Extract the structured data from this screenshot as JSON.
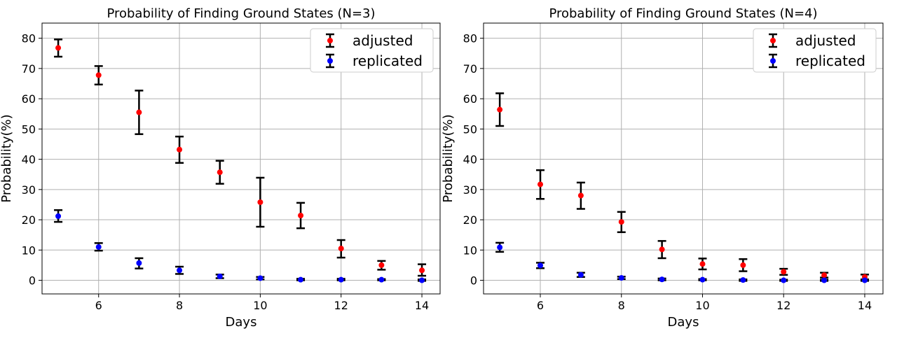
{
  "chart_data": [
    {
      "type": "scatter",
      "title": "Probability of Finding Ground States (N=3)",
      "xlabel": "Days",
      "ylabel": "Probability(%)",
      "xlim": [
        4.6,
        14.45
      ],
      "ylim": [
        -4.5,
        85
      ],
      "xticks": [
        6,
        8,
        10,
        12,
        14
      ],
      "yticks": [
        0,
        10,
        20,
        30,
        40,
        50,
        60,
        70,
        80
      ],
      "grid": true,
      "legend_position": "top-right",
      "series": [
        {
          "name": "adjusted",
          "color": "#ff0000",
          "x": [
            5,
            6,
            7,
            8,
            9,
            10,
            11,
            12,
            13,
            14
          ],
          "y": [
            76.8,
            67.8,
            55.5,
            43.2,
            35.7,
            25.8,
            21.4,
            10.5,
            5.0,
            3.3
          ],
          "err_low": [
            73.9,
            64.7,
            48.3,
            38.8,
            31.9,
            17.7,
            17.2,
            7.5,
            3.5,
            1.5
          ],
          "err_high": [
            79.6,
            70.8,
            62.7,
            47.5,
            39.5,
            33.9,
            25.6,
            13.3,
            6.4,
            5.3
          ]
        },
        {
          "name": "replicated",
          "color": "#0000ff",
          "x": [
            5,
            6,
            7,
            8,
            9,
            10,
            11,
            12,
            13,
            14
          ],
          "y": [
            21.2,
            11.0,
            5.7,
            3.3,
            1.3,
            0.7,
            0.2,
            0.2,
            0.2,
            0.0
          ],
          "err_low": [
            19.3,
            9.8,
            3.9,
            2.1,
            0.7,
            0.3,
            0.0,
            0.0,
            0.0,
            -0.2
          ],
          "err_high": [
            23.2,
            12.3,
            7.3,
            4.5,
            1.9,
            1.1,
            0.5,
            0.5,
            0.4,
            0.3
          ]
        }
      ]
    },
    {
      "type": "scatter",
      "title": "Probability of Finding Ground States (N=4)",
      "xlabel": "Days",
      "ylabel": "Probability(%)",
      "xlim": [
        4.6,
        14.45
      ],
      "ylim": [
        -4.5,
        85
      ],
      "xticks": [
        6,
        8,
        10,
        12,
        14
      ],
      "yticks": [
        0,
        10,
        20,
        30,
        40,
        50,
        60,
        70,
        80
      ],
      "grid": true,
      "legend_position": "top-right",
      "series": [
        {
          "name": "adjusted",
          "color": "#ff0000",
          "x": [
            5,
            6,
            7,
            8,
            9,
            10,
            11,
            12,
            13,
            14
          ],
          "y": [
            56.4,
            31.7,
            28.0,
            19.3,
            10.2,
            5.4,
            5.0,
            2.8,
            1.7,
            1.1
          ],
          "err_low": [
            51.0,
            26.9,
            23.6,
            15.9,
            7.3,
            3.6,
            3.0,
            1.8,
            0.9,
            0.3
          ],
          "err_high": [
            61.8,
            36.4,
            32.3,
            22.6,
            13.0,
            7.2,
            7.0,
            3.8,
            2.5,
            1.9
          ]
        },
        {
          "name": "replicated",
          "color": "#0000ff",
          "x": [
            5,
            6,
            7,
            8,
            9,
            10,
            11,
            12,
            13,
            14
          ],
          "y": [
            10.9,
            4.9,
            1.8,
            0.8,
            0.3,
            0.2,
            0.1,
            0.0,
            0.0,
            0.0
          ],
          "err_low": [
            9.4,
            4.0,
            1.1,
            0.4,
            0.0,
            0.0,
            -0.2,
            -0.2,
            -0.2,
            -0.2
          ],
          "err_high": [
            12.4,
            5.8,
            2.5,
            1.2,
            0.6,
            0.4,
            0.3,
            0.2,
            0.2,
            0.2
          ]
        }
      ]
    }
  ]
}
